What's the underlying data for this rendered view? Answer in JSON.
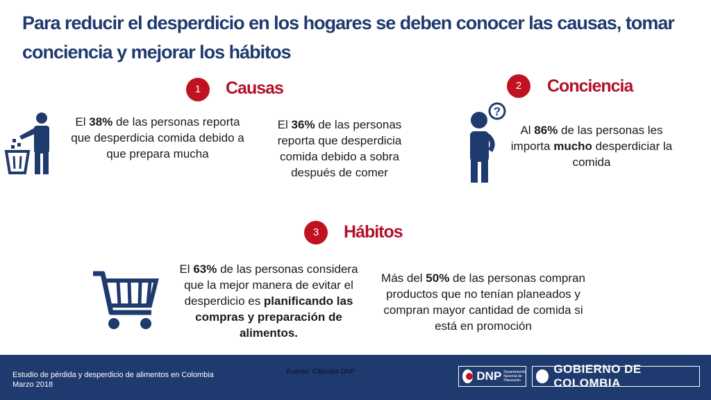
{
  "title": "Para reducir el desperdicio en los hogares se deben conocer las causas, tomar conciencia y mejorar los hábitos",
  "sections": {
    "causas": {
      "number": "1",
      "title": "Causas",
      "items": [
        {
          "pre": "El ",
          "bold": "38%",
          "post": " de las personas reporta que desperdicia comida debido a que prepara mucha"
        },
        {
          "pre": "El ",
          "bold": "36%",
          "post": " de las personas reporta que desperdicia comida debido a sobra después de comer"
        }
      ]
    },
    "conciencia": {
      "number": "2",
      "title": "Conciencia",
      "item": {
        "pre": "Al ",
        "bold": "86%",
        "mid": " de las personas les importa ",
        "bold2": "mucho",
        "post": " desperdiciar la comida"
      }
    },
    "habitos": {
      "number": "3",
      "title": "Hábitos",
      "items": [
        {
          "pre": "El ",
          "bold": "63%",
          "mid": " de las personas considera que la mejor manera de evitar el desperdicio es ",
          "bold2": "planificando las compras y preparación de alimentos."
        },
        {
          "pre": "Más del ",
          "bold": "50%",
          "post": " de las personas compran productos que no tenían planeados y compran mayor cantidad de comida si está en promoción"
        }
      ]
    }
  },
  "footer": {
    "line1": "Estudio de pérdida y desperdicio de alimentos en Colombia",
    "line2": "Marzo 2018",
    "source": "Fuente: Cálculos DNP",
    "dnp_label": "DNP",
    "dnp_small": "Departamento Nacional de Planeación",
    "gobierno_label": "GOBIERNO DE COLOMBIA"
  },
  "colors": {
    "primary": "#1f3a6e",
    "accent": "#c1121f",
    "section_title": "#b3102a"
  }
}
